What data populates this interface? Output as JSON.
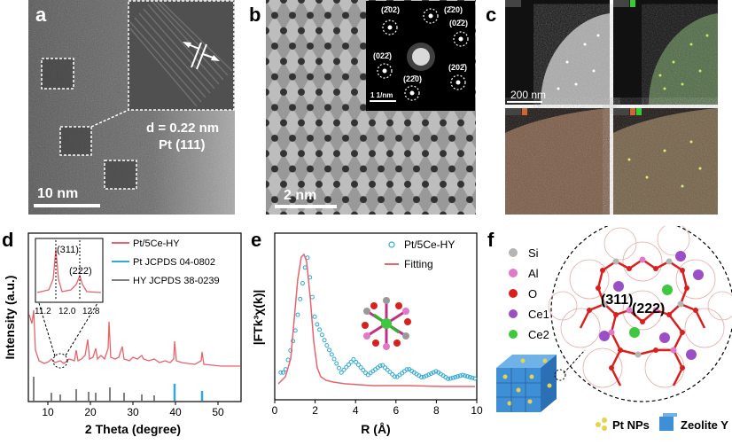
{
  "panel_a": {
    "label": "a",
    "d_spacing": "d = 0.22 nm",
    "plane": "Pt (111)",
    "scale_bar": "10 nm"
  },
  "panel_b": {
    "label": "b",
    "scale_bar": "2 nm",
    "fft_scale": "1 1/nm",
    "spots": [
      "(2̄02)",
      "(2̄20)",
      "(02̄2)",
      "(022̄)",
      "(202̄)",
      "(22̄0)"
    ]
  },
  "panel_c": {
    "label": "c",
    "scale_bar": "200 nm"
  },
  "panel_d": {
    "label": "d",
    "legend": [
      "Pt/5Ce-HY",
      "Pt  JCPDS 04-0802",
      "HY  JCPDS 38-0239"
    ],
    "colors": {
      "sample": "#e8636a",
      "pt": "#31a9d6",
      "hy": "#808080"
    },
    "inset_peaks": [
      "(311)",
      "(222)"
    ],
    "inset_ticks": [
      "11.2",
      "12.0",
      "12.8"
    ],
    "xticks": [
      "10",
      "20",
      "30",
      "40",
      "50"
    ],
    "xlabel": "2 Theta (degree)",
    "ylabel": "Intensity (a.u.)"
  },
  "panel_e": {
    "label": "e",
    "legend": [
      "Pt/5Ce-HY",
      "Fitting"
    ],
    "xticks": [
      "0",
      "2",
      "4",
      "6",
      "8",
      "10"
    ],
    "xlabel": "R (Å)",
    "ylabel": "|FTk³χ(k)|",
    "colors": {
      "data": "#31a9d6",
      "fit": "#e8636a"
    }
  },
  "panel_f": {
    "label": "f",
    "atoms": [
      {
        "name": "Si",
        "color": "#b5b5b5"
      },
      {
        "name": "Al",
        "color": "#e079c8"
      },
      {
        "name": "O",
        "color": "#d9201e"
      },
      {
        "name": "Ce1",
        "color": "#9b4fc4"
      },
      {
        "name": "Ce2",
        "color": "#3ec83e"
      }
    ],
    "sites": [
      "(311)",
      "(222)"
    ],
    "legend_bottom": [
      "Pt NPs",
      "Zeolite Y"
    ]
  },
  "chart_data": [
    {
      "type": "line",
      "panel": "d",
      "xlabel": "2 Theta (degree)",
      "ylabel": "Intensity (a.u.)",
      "xlim": [
        5,
        55
      ],
      "series": [
        {
          "name": "Pt/5Ce-HY",
          "x": [
            6.2,
            10.1,
            11.9,
            15.6,
            18.6,
            20.3,
            23.6,
            27.0,
            31.3,
            39.8,
            46.3
          ],
          "values": [
            0.95,
            0.32,
            0.28,
            0.33,
            0.43,
            0.3,
            0.68,
            0.29,
            0.25,
            0.42,
            0.25
          ]
        },
        {
          "name": "Pt  JCPDS 04-0802",
          "x": [
            39.8,
            46.3
          ],
          "values": [
            1.0,
            0.5
          ]
        },
        {
          "name": "HY  JCPDS 38-0239",
          "x": [
            6.2,
            10.1,
            11.9,
            15.6,
            18.6,
            20.3,
            23.6,
            27.0,
            31.3,
            34.0
          ],
          "values": [
            1.0,
            0.3,
            0.2,
            0.45,
            0.35,
            0.3,
            0.55,
            0.3,
            0.25,
            0.2
          ]
        }
      ]
    },
    {
      "type": "line",
      "panel": "e",
      "xlabel": "R (Å)",
      "ylabel": "|FTk³χ(k)|",
      "xlim": [
        0,
        10
      ],
      "series": [
        {
          "name": "Pt/5Ce-HY",
          "x": [
            0.5,
            1.0,
            1.6,
            2.0,
            2.6,
            3.3,
            3.9,
            4.6,
            5.3,
            6.0,
            6.6,
            7.3,
            8.0,
            8.6,
            9.3,
            10.0
          ],
          "values": [
            0.1,
            0.4,
            1.0,
            0.5,
            0.3,
            0.1,
            0.2,
            0.08,
            0.16,
            0.06,
            0.13,
            0.06,
            0.11,
            0.05,
            0.08,
            0.05
          ]
        },
        {
          "name": "Fitting",
          "x": [
            0.2,
            1.0,
            1.6,
            2.0,
            2.4,
            3.0,
            10.0
          ],
          "values": [
            0.0,
            0.6,
            1.0,
            0.6,
            0.15,
            0.02,
            0.02
          ]
        }
      ]
    }
  ]
}
